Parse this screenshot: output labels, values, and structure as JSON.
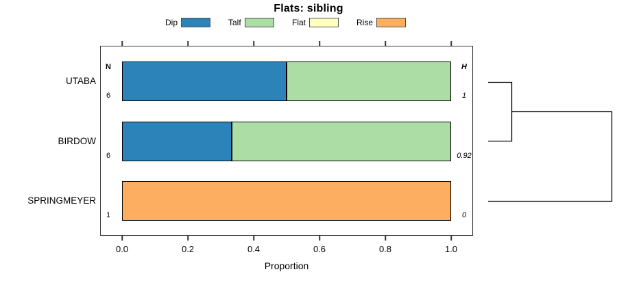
{
  "title": "Flats: sibling",
  "legend": {
    "items": [
      {
        "label": "Dip",
        "color": "#2B83BA"
      },
      {
        "label": "Talf",
        "color": "#ABDDA4"
      },
      {
        "label": "Flat",
        "color": "#FFFFBF"
      },
      {
        "label": "Rise",
        "color": "#FDAE61"
      }
    ]
  },
  "chart_data": {
    "type": "bar",
    "orientation": "horizontal",
    "stacked": true,
    "title": "Flats: sibling",
    "xlabel": "Proportion",
    "xlim": [
      0,
      1
    ],
    "x_tick_labels": [
      "0.0",
      "0.2",
      "0.4",
      "0.6",
      "0.8",
      "1.0"
    ],
    "grid": false,
    "legend_position": "top",
    "categories": [
      "UTABA",
      "BIRDOW",
      "SPRINGMEYER"
    ],
    "series": [
      {
        "name": "Dip",
        "color": "#2B83BA",
        "values": [
          0.5,
          0.333,
          0
        ]
      },
      {
        "name": "Talf",
        "color": "#ABDDA4",
        "values": [
          0.5,
          0.667,
          0
        ]
      },
      {
        "name": "Flat",
        "color": "#FFFFBF",
        "values": [
          0,
          0,
          0
        ]
      },
      {
        "name": "Rise",
        "color": "#FDAE61",
        "values": [
          0,
          0,
          1
        ]
      }
    ],
    "n_column": {
      "header": "N",
      "values": [
        "6",
        "6",
        "1"
      ]
    },
    "h_column": {
      "header": "H",
      "values": [
        "1",
        "0.92",
        "0"
      ]
    },
    "dendrogram": {
      "description": "cluster tree on right side",
      "merges": [
        {
          "members": [
            "UTABA",
            "BIRDOW"
          ]
        },
        {
          "members": [
            "UTABA+BIRDOW",
            "SPRINGMEYER"
          ]
        }
      ]
    }
  }
}
